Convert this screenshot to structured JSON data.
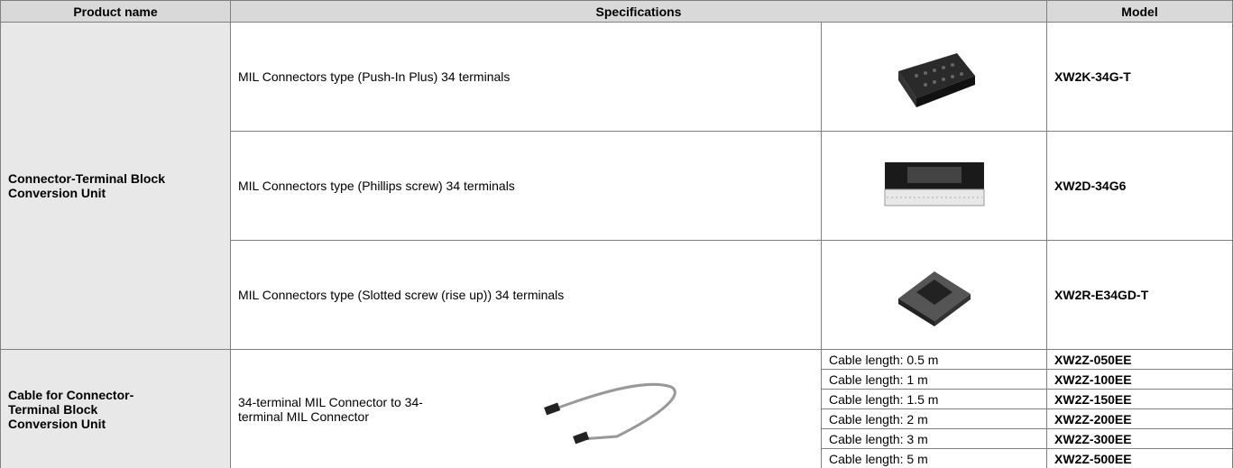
{
  "table": {
    "headers": [
      "Product name",
      "Specifications",
      "Model"
    ],
    "groups": [
      {
        "product": "Connector-Terminal Block Conversion Unit",
        "items": [
          {
            "spec": "MIL Connectors type (Push-In Plus) 34 terminals",
            "model": "XW2K-34G-T"
          },
          {
            "spec": "MIL Connectors type (Phillips screw) 34 terminals",
            "model": "XW2D-34G6"
          },
          {
            "spec": "MIL Connectors type (Slotted screw (rise up)) 34 terminals",
            "model": "XW2R-E34GD-T"
          }
        ]
      },
      {
        "product": "Cable for Connector-Terminal Block Conversion Unit",
        "spec": "34-terminal MIL Connector to 34-terminal MIL Connector",
        "items": [
          {
            "spec": "Cable length: 0.5 m",
            "model": "XW2Z-050EE"
          },
          {
            "spec": "Cable length: 1 m",
            "model": "XW2Z-100EE"
          },
          {
            "spec": "Cable length: 1.5 m",
            "model": "XW2Z-150EE"
          },
          {
            "spec": "Cable length: 2 m",
            "model": "XW2Z-200EE"
          },
          {
            "spec": "Cable length: 3 m",
            "model": "XW2Z-300EE"
          },
          {
            "spec": "Cable length: 5 m",
            "model": "XW2Z-500EE"
          }
        ]
      }
    ]
  }
}
